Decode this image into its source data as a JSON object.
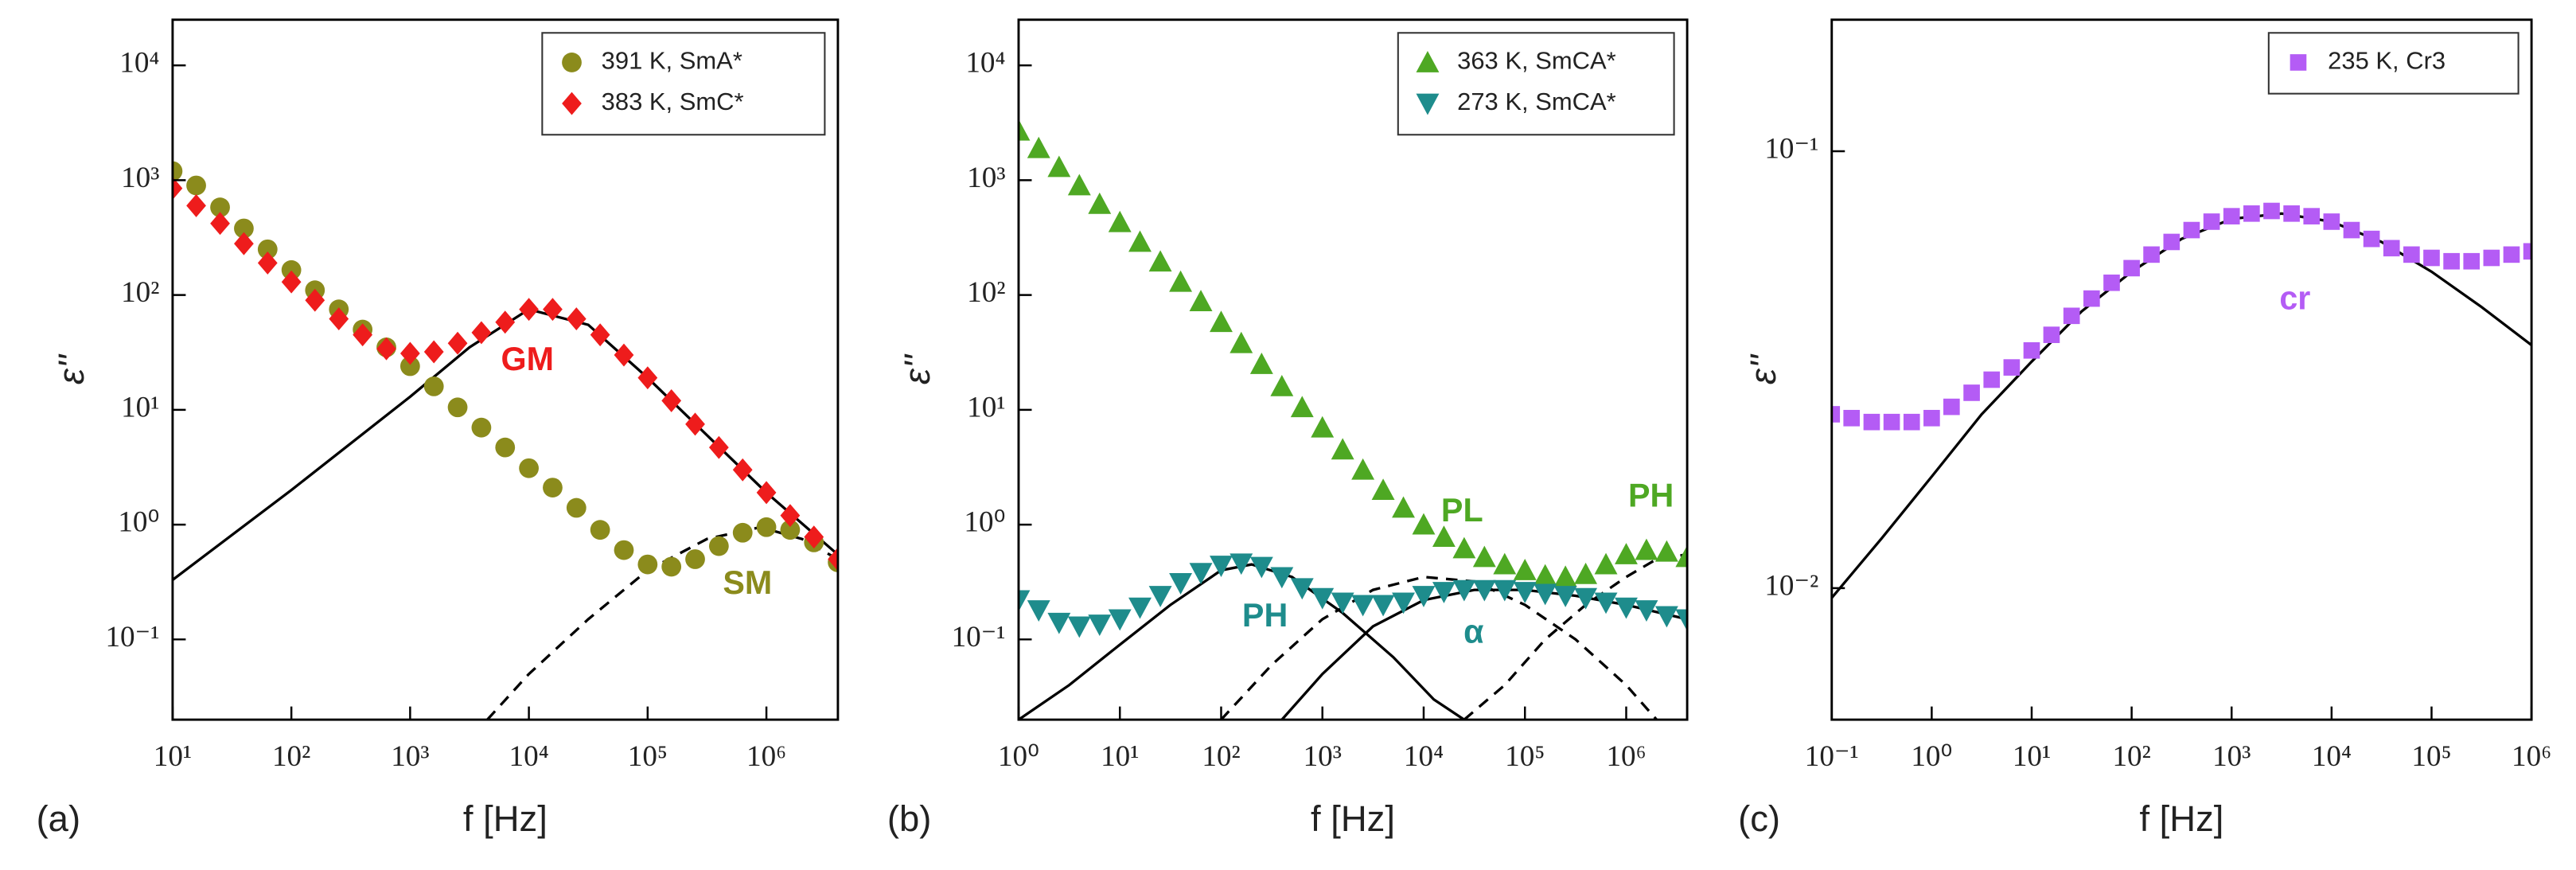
{
  "chart_data": [
    {
      "type": "scatter",
      "panel": "(a)",
      "xlabel": "f [Hz]",
      "ylabel": "ε''",
      "xscale": "log",
      "yscale": "log",
      "legend": "upper right",
      "xlim": [
        10,
        4000000
      ],
      "ylim": [
        0.02,
        25000
      ],
      "xticks": [
        {
          "value": 10,
          "label": "10¹"
        },
        {
          "value": 100,
          "label": "10²"
        },
        {
          "value": 1000,
          "label": "10³"
        },
        {
          "value": 10000,
          "label": "10⁴"
        },
        {
          "value": 100000,
          "label": "10⁵"
        },
        {
          "value": 1000000,
          "label": "10⁶"
        }
      ],
      "yticks": [
        {
          "value": 0.1,
          "label": "10⁻¹"
        },
        {
          "value": 1,
          "label": "10⁰"
        },
        {
          "value": 10,
          "label": "10¹"
        },
        {
          "value": 100,
          "label": "10²"
        },
        {
          "value": 1000,
          "label": "10³"
        },
        {
          "value": 10000,
          "label": "10⁴"
        }
      ],
      "x": [
        10,
        15.8,
        25.1,
        39.8,
        63.1,
        100,
        158,
        251,
        398,
        631,
        1000,
        1585,
        2512,
        3981,
        6310,
        10000,
        15850,
        25120,
        39810,
        63100,
        100000,
        158500,
        251200,
        398100,
        631000,
        1000000,
        1585000,
        2512000,
        3981000
      ],
      "series": [
        {
          "name": "391 K, SmA*",
          "color": "#8b8b1c",
          "marker": "circle",
          "values": [
            1200,
            900,
            580,
            380,
            250,
            165,
            110,
            75,
            50,
            35,
            24,
            16,
            10.5,
            7,
            4.7,
            3.1,
            2.1,
            1.4,
            0.9,
            0.6,
            0.45,
            0.43,
            0.5,
            0.65,
            0.85,
            0.95,
            0.9,
            0.7,
            0.47
          ]
        },
        {
          "name": "383 K, SmC*",
          "color": "#ee1c1c",
          "marker": "diamond",
          "values": [
            850,
            600,
            420,
            280,
            190,
            130,
            90,
            62,
            45,
            34,
            31,
            32,
            38,
            47,
            58,
            75,
            75,
            62,
            45,
            30,
            19,
            12,
            7.5,
            4.7,
            3,
            1.9,
            1.2,
            0.78,
            0.5
          ]
        }
      ],
      "fits": [
        {
          "style": "solid",
          "color": "#000000",
          "x": [
            10,
            100,
            1000,
            3162,
            10000,
            31620,
            100000,
            316200,
            1000000,
            3981000
          ],
          "values": [
            0.33,
            2,
            13,
            35,
            75,
            55,
            19,
            6,
            1.9,
            0.55
          ]
        },
        {
          "style": "dashed",
          "color": "#000000",
          "x": [
            4467,
            10000,
            31620,
            100000,
            316200,
            891300,
            1995000,
            3981000
          ],
          "values": [
            0.02,
            0.05,
            0.15,
            0.4,
            0.75,
            0.95,
            0.75,
            0.5
          ]
        }
      ],
      "annotations": [
        {
          "text": "GM",
          "color": "#ee1c1c"
        },
        {
          "text": "SM",
          "color": "#8b8b1c"
        }
      ]
    },
    {
      "type": "scatter",
      "panel": "(b)",
      "xlabel": "f [Hz]",
      "ylabel": "ε''",
      "xscale": "log",
      "yscale": "log",
      "legend": "upper right",
      "xlim": [
        1,
        4000000
      ],
      "ylim": [
        0.02,
        25000
      ],
      "xticks": [
        {
          "value": 1,
          "label": "10⁰"
        },
        {
          "value": 10,
          "label": "10¹"
        },
        {
          "value": 100,
          "label": "10²"
        },
        {
          "value": 1000,
          "label": "10³"
        },
        {
          "value": 10000,
          "label": "10⁴"
        },
        {
          "value": 100000,
          "label": "10⁵"
        },
        {
          "value": 1000000,
          "label": "10⁶"
        }
      ],
      "yticks": [
        {
          "value": 0.1,
          "label": "10⁻¹"
        },
        {
          "value": 1,
          "label": "10⁰"
        },
        {
          "value": 10,
          "label": "10¹"
        },
        {
          "value": 100,
          "label": "10²"
        },
        {
          "value": 1000,
          "label": "10³"
        },
        {
          "value": 10000,
          "label": "10⁴"
        }
      ],
      "x": [
        1,
        1.58,
        2.51,
        3.98,
        6.31,
        10,
        15.8,
        25.1,
        39.8,
        63.1,
        100,
        158,
        251,
        398,
        631,
        1000,
        1585,
        2512,
        3981,
        6310,
        10000,
        15850,
        25120,
        39810,
        63100,
        100000,
        158500,
        251200,
        398100,
        631000,
        1000000,
        1585000,
        2512000,
        3981000
      ],
      "series": [
        {
          "name": "363 K, SmCA*",
          "color": "#4ea823",
          "marker": "triangle-up",
          "values": [
            2700,
            1900,
            1300,
            900,
            620,
            430,
            290,
            195,
            130,
            88,
            58,
            38,
            25,
            16,
            10.5,
            7,
            4.5,
            3,
            2.0,
            1.4,
            1.0,
            0.78,
            0.62,
            0.52,
            0.45,
            0.4,
            0.36,
            0.35,
            0.37,
            0.45,
            0.55,
            0.6,
            0.58,
            0.52
          ]
        },
        {
          "name": "273 K, SmCA*",
          "color": "#1e8c8c",
          "marker": "triangle-down",
          "values": [
            0.22,
            0.18,
            0.14,
            0.13,
            0.135,
            0.15,
            0.19,
            0.24,
            0.31,
            0.38,
            0.44,
            0.46,
            0.43,
            0.35,
            0.28,
            0.23,
            0.21,
            0.2,
            0.2,
            0.21,
            0.24,
            0.26,
            0.27,
            0.27,
            0.27,
            0.26,
            0.25,
            0.24,
            0.23,
            0.21,
            0.19,
            0.18,
            0.16,
            0.15
          ]
        }
      ],
      "fits": [
        {
          "style": "solid",
          "color": "#000000",
          "x": [
            1,
            3.16,
            10,
            31.6,
            100,
            200,
            501,
            1585,
            5012,
            12590,
            25120
          ],
          "values": [
            0.02,
            0.04,
            0.09,
            0.2,
            0.4,
            0.45,
            0.35,
            0.17,
            0.07,
            0.03,
            0.02
          ]
        },
        {
          "style": "dashed",
          "color": "#000000",
          "x": [
            100,
            316,
            1000,
            3162,
            10000,
            31620,
            100000,
            316200,
            1000000,
            1995000
          ],
          "values": [
            0.02,
            0.06,
            0.15,
            0.27,
            0.35,
            0.32,
            0.2,
            0.1,
            0.04,
            0.02
          ]
        },
        {
          "style": "solid",
          "color": "#000000",
          "x": [
            398,
            1000,
            3162,
            10000,
            31620,
            100000,
            316200,
            1000000,
            3981000
          ],
          "values": [
            0.02,
            0.05,
            0.13,
            0.22,
            0.27,
            0.27,
            0.24,
            0.2,
            0.15
          ]
        },
        {
          "style": "dashed",
          "color": "#000000",
          "x": [
            25120,
            63100,
            158500,
            398100,
            1000000,
            1995000,
            3981000
          ],
          "values": [
            0.02,
            0.04,
            0.1,
            0.2,
            0.35,
            0.5,
            0.55
          ]
        }
      ],
      "annotations": [
        {
          "text": "PL",
          "color": "#4ea823"
        },
        {
          "text": "PH",
          "color": "#4ea823"
        },
        {
          "text": "PH",
          "color": "#1e8c8c"
        },
        {
          "text": "α",
          "color": "#1e8c8c"
        }
      ]
    },
    {
      "type": "scatter",
      "panel": "(c)",
      "xlabel": "f [Hz]",
      "ylabel": "ε''",
      "xscale": "log",
      "yscale": "log",
      "legend": "upper right",
      "xlim": [
        0.1,
        1000000
      ],
      "ylim": [
        0.005,
        0.2
      ],
      "xticks": [
        {
          "value": 0.1,
          "label": "10⁻¹"
        },
        {
          "value": 1,
          "label": "10⁰"
        },
        {
          "value": 10,
          "label": "10¹"
        },
        {
          "value": 100,
          "label": "10²"
        },
        {
          "value": 1000,
          "label": "10³"
        },
        {
          "value": 10000,
          "label": "10⁴"
        },
        {
          "value": 100000,
          "label": "10⁵"
        },
        {
          "value": 1000000,
          "label": "10⁶"
        }
      ],
      "yticks": [
        {
          "value": 0.01,
          "label": "10⁻²"
        },
        {
          "value": 0.1,
          "label": "10⁻¹"
        }
      ],
      "x": [
        0.1,
        0.158,
        0.251,
        0.398,
        0.631,
        1,
        1.58,
        2.51,
        3.98,
        6.31,
        10,
        15.8,
        25.1,
        39.8,
        63.1,
        100,
        158,
        251,
        398,
        631,
        1000,
        1585,
        2512,
        3981,
        6310,
        10000,
        15850,
        25120,
        39810,
        63100,
        100000,
        158500,
        251200,
        398100,
        631000,
        1000000
      ],
      "series": [
        {
          "name": "235 K, Cr3",
          "color": "#b45cf5",
          "marker": "square",
          "values": [
            0.025,
            0.0245,
            0.024,
            0.024,
            0.024,
            0.0245,
            0.026,
            0.028,
            0.03,
            0.032,
            0.035,
            0.038,
            0.042,
            0.046,
            0.05,
            0.054,
            0.058,
            0.062,
            0.066,
            0.069,
            0.071,
            0.072,
            0.073,
            0.072,
            0.071,
            0.069,
            0.066,
            0.063,
            0.06,
            0.058,
            0.057,
            0.056,
            0.056,
            0.057,
            0.058,
            0.059
          ]
        }
      ],
      "fits": [
        {
          "style": "solid",
          "color": "#000000",
          "x": [
            0.1,
            0.316,
            1,
            3.16,
            10,
            31.6,
            100,
            316,
            1000,
            3162,
            10000,
            31620,
            100000,
            316200,
            1000000
          ],
          "values": [
            0.0095,
            0.013,
            0.018,
            0.025,
            0.033,
            0.043,
            0.053,
            0.063,
            0.07,
            0.072,
            0.069,
            0.062,
            0.053,
            0.044,
            0.036
          ]
        }
      ],
      "annotations": [
        {
          "text": "cr",
          "color": "#b45cf5"
        }
      ]
    }
  ]
}
